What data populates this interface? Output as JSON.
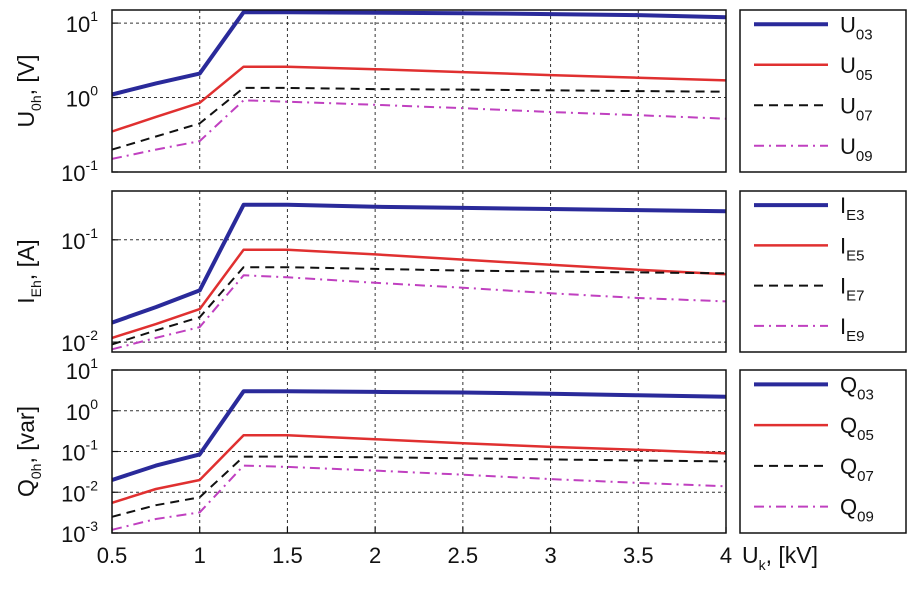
{
  "chart_data": [
    {
      "type": "line",
      "ylabel": {
        "base": "U",
        "sub": "0h",
        "rest": ", [V]"
      },
      "yscale": "log",
      "ylim": [
        0.1,
        15
      ],
      "yticks": [
        {
          "value": 0.1,
          "base": "10",
          "exp": "-1"
        },
        {
          "value": 1,
          "base": "10",
          "exp": "0"
        },
        {
          "value": 10,
          "base": "10",
          "exp": "1"
        }
      ],
      "xlim": [
        0.5,
        4
      ],
      "grid": true,
      "legend": "right",
      "series": [
        {
          "name": "U",
          "sub": "03",
          "color": "#2a2a9a",
          "dash": "solid",
          "width": 4,
          "x": [
            0.5,
            0.75,
            1,
            1.25,
            1.5,
            2,
            2.5,
            3,
            3.5,
            4
          ],
          "y": [
            1.1,
            1.55,
            2.1,
            14,
            14,
            13.8,
            13.6,
            13.2,
            12.8,
            12
          ]
        },
        {
          "name": "U",
          "sub": "05",
          "color": "#e03030",
          "dash": "solid",
          "width": 2.5,
          "x": [
            0.5,
            0.75,
            1,
            1.25,
            1.5,
            2,
            2.5,
            3,
            3.5,
            4
          ],
          "y": [
            0.35,
            0.55,
            0.85,
            2.6,
            2.6,
            2.4,
            2.2,
            2.0,
            1.85,
            1.7
          ]
        },
        {
          "name": "U",
          "sub": "07",
          "color": "#111111",
          "dash": "dashed",
          "width": 2,
          "x": [
            0.5,
            0.75,
            1,
            1.25,
            1.5,
            2,
            2.5,
            3,
            3.5,
            4
          ],
          "y": [
            0.2,
            0.3,
            0.45,
            1.35,
            1.35,
            1.3,
            1.28,
            1.25,
            1.22,
            1.2
          ]
        },
        {
          "name": "U",
          "sub": "09",
          "color": "#c040c0",
          "dash": "dashdot",
          "width": 2,
          "x": [
            0.5,
            0.75,
            1,
            1.25,
            1.5,
            2,
            2.5,
            3,
            3.5,
            4
          ],
          "y": [
            0.15,
            0.2,
            0.26,
            0.92,
            0.88,
            0.8,
            0.72,
            0.64,
            0.58,
            0.52
          ]
        }
      ]
    },
    {
      "type": "line",
      "ylabel": {
        "base": "I",
        "sub": "Eh",
        "rest": ", [A]"
      },
      "yscale": "log",
      "ylim": [
        0.008,
        0.3
      ],
      "yticks": [
        {
          "value": 0.01,
          "base": "10",
          "exp": "-2"
        },
        {
          "value": 0.1,
          "base": "10",
          "exp": "-1"
        }
      ],
      "xlim": [
        0.5,
        4
      ],
      "grid": true,
      "legend": "right",
      "series": [
        {
          "name": "I",
          "sub": "E3",
          "color": "#2a2a9a",
          "dash": "solid",
          "width": 4,
          "x": [
            0.5,
            0.75,
            1,
            1.25,
            1.5,
            2,
            2.5,
            3,
            3.5,
            4
          ],
          "y": [
            0.0155,
            0.022,
            0.032,
            0.22,
            0.22,
            0.21,
            0.205,
            0.2,
            0.195,
            0.19
          ]
        },
        {
          "name": "I",
          "sub": "E5",
          "color": "#e03030",
          "dash": "solid",
          "width": 2.5,
          "x": [
            0.5,
            0.75,
            1,
            1.25,
            1.5,
            2,
            2.5,
            3,
            3.5,
            4
          ],
          "y": [
            0.011,
            0.015,
            0.021,
            0.08,
            0.08,
            0.072,
            0.064,
            0.057,
            0.051,
            0.046
          ]
        },
        {
          "name": "I",
          "sub": "E7",
          "color": "#111111",
          "dash": "dashed",
          "width": 2,
          "x": [
            0.5,
            0.75,
            1,
            1.25,
            1.5,
            2,
            2.5,
            3,
            3.5,
            4
          ],
          "y": [
            0.0095,
            0.013,
            0.0175,
            0.054,
            0.054,
            0.052,
            0.05,
            0.049,
            0.048,
            0.047
          ]
        },
        {
          "name": "I",
          "sub": "E9",
          "color": "#c040c0",
          "dash": "dashdot",
          "width": 2,
          "x": [
            0.5,
            0.75,
            1,
            1.25,
            1.5,
            2,
            2.5,
            3,
            3.5,
            4
          ],
          "y": [
            0.0085,
            0.011,
            0.014,
            0.045,
            0.043,
            0.038,
            0.034,
            0.03,
            0.027,
            0.025
          ]
        }
      ]
    },
    {
      "type": "line",
      "ylabel": {
        "base": "Q",
        "sub": "0h",
        "rest": ", [var]"
      },
      "yscale": "log",
      "ylim": [
        0.001,
        10
      ],
      "yticks": [
        {
          "value": 0.001,
          "base": "10",
          "exp": "-3"
        },
        {
          "value": 0.01,
          "base": "10",
          "exp": "-2"
        },
        {
          "value": 0.1,
          "base": "10",
          "exp": "-1"
        },
        {
          "value": 1,
          "base": "10",
          "exp": "0"
        },
        {
          "value": 10,
          "base": "10",
          "exp": "1"
        }
      ],
      "xlim": [
        0.5,
        4
      ],
      "xticks": [
        "0.5",
        "1",
        "1.5",
        "2",
        "2.5",
        "3",
        "3.5",
        "4"
      ],
      "xlabel": {
        "base": "U",
        "sub": "k",
        "rest": ", [kV]"
      },
      "grid": true,
      "legend": "right",
      "series": [
        {
          "name": "Q",
          "sub": "03",
          "color": "#2a2a9a",
          "dash": "solid",
          "width": 4,
          "x": [
            0.5,
            0.75,
            1,
            1.25,
            1.5,
            2,
            2.5,
            3,
            3.5,
            4
          ],
          "y": [
            0.02,
            0.045,
            0.085,
            3.0,
            3.0,
            2.9,
            2.8,
            2.6,
            2.4,
            2.2
          ]
        },
        {
          "name": "Q",
          "sub": "05",
          "color": "#e03030",
          "dash": "solid",
          "width": 2.5,
          "x": [
            0.5,
            0.75,
            1,
            1.25,
            1.5,
            2,
            2.5,
            3,
            3.5,
            4
          ],
          "y": [
            0.0055,
            0.012,
            0.02,
            0.25,
            0.25,
            0.2,
            0.16,
            0.13,
            0.11,
            0.09
          ]
        },
        {
          "name": "Q",
          "sub": "07",
          "color": "#111111",
          "dash": "dashed",
          "width": 2,
          "x": [
            0.5,
            0.75,
            1,
            1.25,
            1.5,
            2,
            2.5,
            3,
            3.5,
            4
          ],
          "y": [
            0.0025,
            0.0048,
            0.0075,
            0.075,
            0.075,
            0.072,
            0.068,
            0.064,
            0.06,
            0.057
          ]
        },
        {
          "name": "Q",
          "sub": "09",
          "color": "#c040c0",
          "dash": "dashdot",
          "width": 2,
          "x": [
            0.5,
            0.75,
            1,
            1.25,
            1.5,
            2,
            2.5,
            3,
            3.5,
            4
          ],
          "y": [
            0.0012,
            0.0022,
            0.0032,
            0.045,
            0.042,
            0.034,
            0.027,
            0.021,
            0.017,
            0.014
          ]
        }
      ]
    }
  ]
}
